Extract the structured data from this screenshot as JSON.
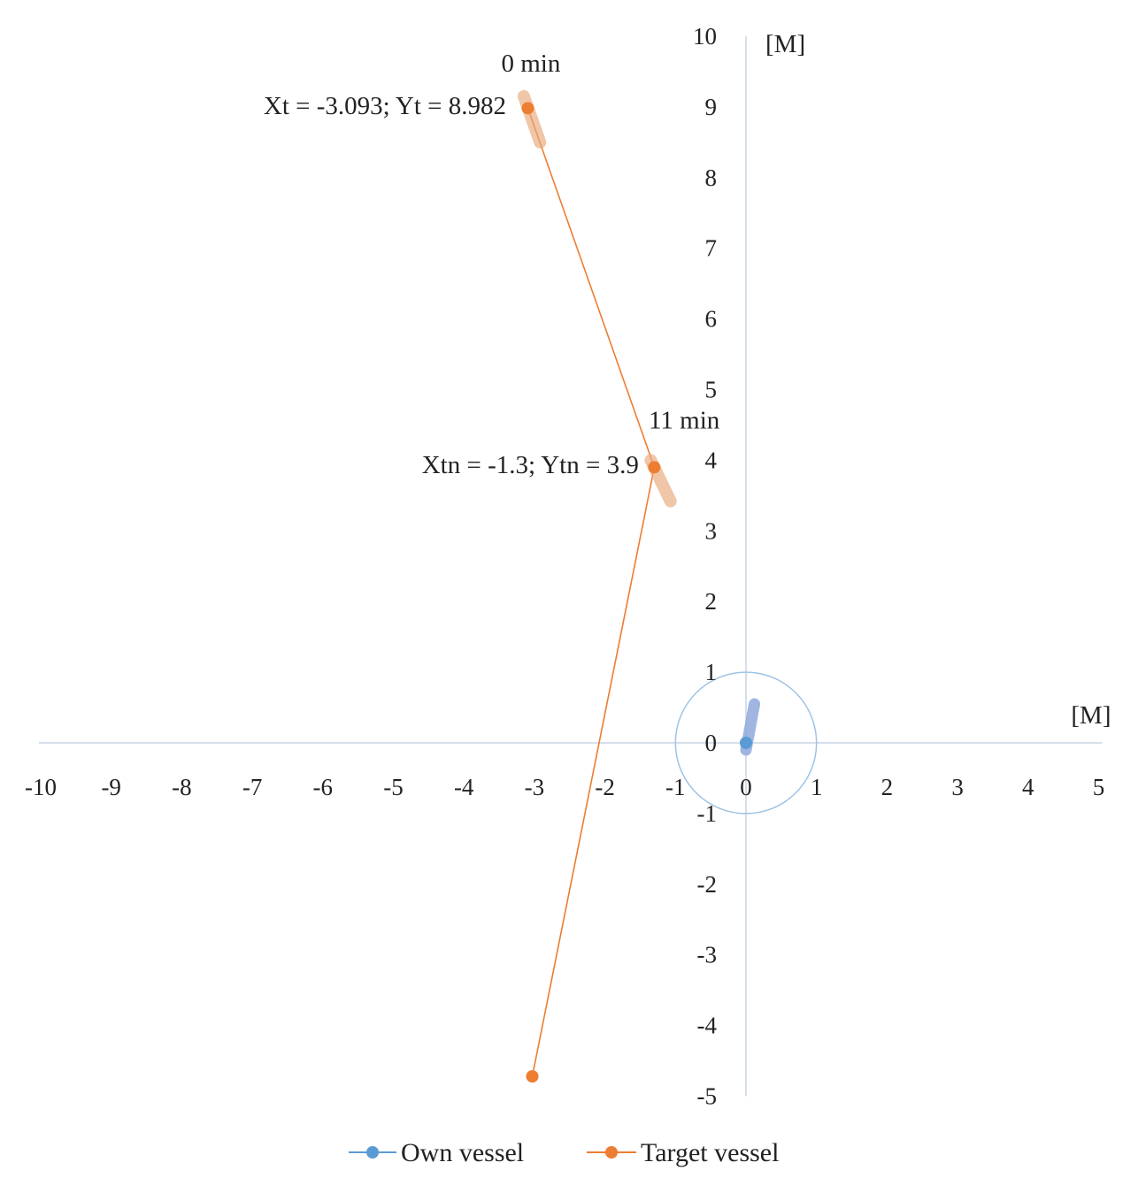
{
  "chart_data": {
    "type": "scatter",
    "x_unit_label": "[M]",
    "y_unit_label": "[M]",
    "xlim": [
      -10,
      5
    ],
    "ylim": [
      -5,
      10
    ],
    "x_ticks": [
      "-10",
      "-9",
      "-8",
      "-7",
      "-6",
      "-5",
      "-4",
      "-3",
      "-2",
      "-1",
      "0",
      "1",
      "2",
      "3",
      "4",
      "5"
    ],
    "y_ticks": [
      "-5",
      "-4",
      "-3",
      "-2",
      "-1",
      "0",
      "1",
      "2",
      "3",
      "4",
      "5",
      "6",
      "7",
      "8",
      "9",
      "10"
    ],
    "grid": false,
    "legend_position": "bottom",
    "series": [
      {
        "name": "Own vessel",
        "color": "#5b9bd5",
        "points": [
          {
            "x": 0,
            "y": 0
          }
        ],
        "safety_circle_radius": 1,
        "heading_marker": {
          "from": [
            0,
            -0.1
          ],
          "to": [
            0.12,
            0.55
          ]
        }
      },
      {
        "name": "Target vessel",
        "color": "#ed7d31",
        "points": [
          {
            "x": -3.093,
            "y": 8.982
          },
          {
            "x": -1.3,
            "y": 3.9
          },
          {
            "x": -3.03,
            "y": -4.72
          }
        ],
        "heading_markers": [
          {
            "from": [
              -3.15,
              9.15
            ],
            "to": [
              -2.92,
              8.5
            ]
          },
          {
            "from": [
              -1.35,
              4.0
            ],
            "to": [
              -1.07,
              3.42
            ]
          }
        ]
      }
    ],
    "annotations": [
      {
        "id": "t0_time",
        "text": "0 min",
        "x": -3.05,
        "y": 9.5
      },
      {
        "id": "t0_coords",
        "text": "Xt = -3.093; Yt = 8.982",
        "x": -3.4,
        "y": 8.9
      },
      {
        "id": "t11_time",
        "text": "11 min",
        "x": -1.38,
        "y": 4.45
      },
      {
        "id": "t11_coords",
        "text": "Xtn = -1.3; Ytn =  3.9",
        "x": -1.52,
        "y": 3.82
      }
    ]
  }
}
